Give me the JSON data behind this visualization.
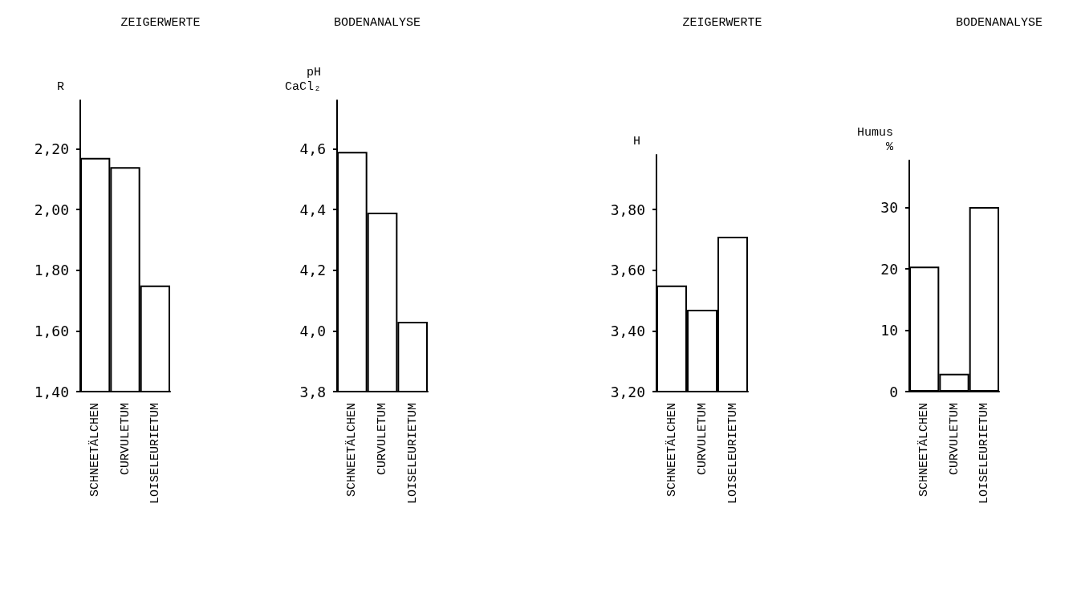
{
  "chart_data": [
    {
      "type": "bar",
      "title": "ZEIGERWERTE",
      "ylabel": "R",
      "categories": [
        "SCHNEETÄLCHEN",
        "CURVULETUM",
        "LOISELEURIETUM"
      ],
      "values": [
        2.17,
        2.14,
        1.75
      ],
      "color": "#ffffff",
      "ylim": [
        1.4,
        2.36
      ],
      "yticks": [
        {
          "value": 1.4,
          "label": "1,40"
        },
        {
          "value": 1.6,
          "label": "1,60"
        },
        {
          "value": 1.8,
          "label": "1,80"
        },
        {
          "value": 2.0,
          "label": "2,00"
        },
        {
          "value": 2.2,
          "label": "2,20"
        }
      ]
    },
    {
      "type": "bar",
      "title": "BODENANALYSE",
      "ylabel": "pH\nCaCl₂",
      "categories": [
        "SCHNEETÄLCHEN",
        "CURVULETUM",
        "LOISELEURIETUM"
      ],
      "values": [
        4.59,
        4.39,
        4.03
      ],
      "color": "#ffffff",
      "ylim": [
        3.8,
        4.76
      ],
      "yticks": [
        {
          "value": 3.8,
          "label": "3,8"
        },
        {
          "value": 4.0,
          "label": "4,0"
        },
        {
          "value": 4.2,
          "label": "4,2"
        },
        {
          "value": 4.4,
          "label": "4,4"
        },
        {
          "value": 4.6,
          "label": "4,6"
        }
      ]
    },
    {
      "type": "bar",
      "title": "ZEIGERWERTE",
      "ylabel": "H",
      "categories": [
        "SCHNEETÄLCHEN",
        "CURVULETUM",
        "LOISELEURIETUM"
      ],
      "values": [
        3.55,
        3.47,
        3.71
      ],
      "color": "#ffffff",
      "ylim": [
        3.2,
        3.98
      ],
      "yticks": [
        {
          "value": 3.2,
          "label": "3,20"
        },
        {
          "value": 3.4,
          "label": "3,40"
        },
        {
          "value": 3.6,
          "label": "3,60"
        },
        {
          "value": 3.8,
          "label": "3,80"
        }
      ]
    },
    {
      "type": "bar",
      "title": "BODENANALYSE",
      "ylabel": "Humus\n%",
      "categories": [
        "SCHNEETÄLCHEN",
        "CURVULETUM",
        "LOISELEURIETUM"
      ],
      "values": [
        20.4,
        2.9,
        30.1
      ],
      "color": "#ffffff",
      "ylim": [
        0,
        37.7
      ],
      "yticks": [
        0,
        10,
        20,
        30
      ]
    }
  ]
}
